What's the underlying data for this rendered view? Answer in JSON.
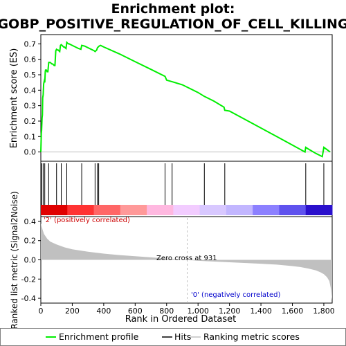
{
  "chart_data": {
    "type": "line",
    "title_line1": "Enrichment plot:",
    "title_line2": "GOBP_POSITIVE_REGULATION_OF_CELL_KILLING",
    "xlabel": "Rank in Ordered Dataset",
    "x_ticks": [
      0,
      200,
      400,
      600,
      800,
      1000,
      1200,
      1400,
      1600,
      1800
    ],
    "x_tick_labels": [
      "0",
      "200",
      "400",
      "600",
      "800",
      "1,000",
      "1,200",
      "1,400",
      "1,600",
      "1,800"
    ],
    "xlim": [
      0,
      1853
    ],
    "es_panel": {
      "ylabel": "Enrichment score (ES)",
      "ylim": [
        -0.06,
        0.76
      ],
      "y_ticks": [
        0.0,
        0.1,
        0.2,
        0.3,
        0.4,
        0.5,
        0.6,
        0.7
      ],
      "y_tick_labels": [
        "0.0",
        "0.1",
        "0.2",
        "0.3",
        "0.4",
        "0.5",
        "0.6",
        "0.7"
      ],
      "series": [
        {
          "x": [
            0,
            3,
            5,
            8,
            10,
            12,
            15,
            18,
            20,
            22,
            25,
            28,
            30,
            35,
            40,
            45,
            50,
            55,
            60,
            65,
            70,
            75,
            80,
            85,
            90,
            95,
            100,
            105,
            110,
            115,
            120,
            125,
            130,
            135,
            140,
            145,
            150,
            155,
            160,
            165,
            170,
            175,
            180,
            200,
            220,
            240,
            255,
            260,
            280,
            300,
            320,
            340,
            345,
            355,
            360,
            370,
            380,
            400,
            500,
            600,
            700,
            790,
            800,
            835,
            900,
            1000,
            1040,
            1100,
            1165,
            1170,
            1200,
            1300,
            1400,
            1500,
            1600,
            1680,
            1685,
            1700,
            1750,
            1790,
            1800,
            1840
          ],
          "y": [
            0.0,
            0.12,
            0.14,
            0.22,
            0.24,
            0.35,
            0.37,
            0.44,
            0.45,
            0.46,
            0.45,
            0.52,
            0.53,
            0.53,
            0.52,
            0.52,
            0.58,
            0.58,
            0.58,
            0.575,
            0.57,
            0.57,
            0.565,
            0.56,
            0.56,
            0.655,
            0.665,
            0.66,
            0.66,
            0.655,
            0.65,
            0.69,
            0.695,
            0.69,
            0.685,
            0.68,
            0.68,
            0.675,
            0.67,
            0.71,
            0.705,
            0.7,
            0.7,
            0.69,
            0.68,
            0.67,
            0.665,
            0.69,
            0.685,
            0.675,
            0.665,
            0.655,
            0.65,
            0.66,
            0.675,
            0.685,
            0.69,
            0.68,
            0.635,
            0.585,
            0.535,
            0.49,
            0.465,
            0.455,
            0.435,
            0.385,
            0.36,
            0.33,
            0.29,
            0.27,
            0.265,
            0.21,
            0.155,
            0.1,
            0.045,
            0.0,
            0.03,
            0.02,
            -0.01,
            -0.03,
            0.03,
            0.0
          ]
        }
      ]
    },
    "hits": [
      5,
      15,
      25,
      50,
      100,
      130,
      165,
      260,
      345,
      360,
      368,
      790,
      835,
      1040,
      1170,
      1685,
      1800
    ],
    "color_bar_colors": [
      "#e00000",
      "#ff3333",
      "#ff6666",
      "#ff9999",
      "#ffb8e0",
      "#f2ccff",
      "#d8c8ff",
      "#c2b6ff",
      "#8c80ff",
      "#5f52ee",
      "#2a10cc"
    ],
    "metric_panel": {
      "ylabel": "Ranked list metric (Signal2Noise)",
      "ylim": [
        -0.45,
        0.45
      ],
      "y_ticks": [
        -0.4,
        -0.2,
        0.0,
        0.2,
        0.4
      ],
      "y_tick_labels": [
        "-0.4",
        "-0.2",
        "0.0",
        "0.2",
        "0.4"
      ],
      "x": [
        0,
        10,
        20,
        40,
        60,
        100,
        150,
        200,
        300,
        400,
        500,
        600,
        700,
        800,
        931,
        1000,
        1200,
        1400,
        1500,
        1600,
        1650,
        1700,
        1750,
        1780,
        1800,
        1820,
        1835,
        1845,
        1853
      ],
      "y": [
        0.38,
        0.32,
        0.27,
        0.22,
        0.19,
        0.16,
        0.13,
        0.11,
        0.085,
        0.065,
        0.05,
        0.038,
        0.026,
        0.014,
        0.0,
        -0.01,
        -0.025,
        -0.04,
        -0.05,
        -0.065,
        -0.075,
        -0.09,
        -0.11,
        -0.13,
        -0.15,
        -0.18,
        -0.22,
        -0.3,
        -0.42
      ],
      "zero_cross_rank": 931,
      "zero_cross_label": "Zero cross at 931",
      "pos_label": "'2' (positively correlated)",
      "neg_label": "'0' (negatively correlated)"
    },
    "legend": [
      {
        "label": "Enrichment profile",
        "color": "#00ee00"
      },
      {
        "label": "Hits",
        "color": "#000000"
      },
      {
        "label": "Ranking metric scores",
        "color": "#c0c0c0"
      }
    ],
    "colors": {
      "es_line": "#00ee00",
      "hit_line": "#000000",
      "metric_fill": "#c0c0c0",
      "pos_text": "#cc0000",
      "neg_text": "#0000cc",
      "zero_line": "#c0c0c0"
    }
  }
}
